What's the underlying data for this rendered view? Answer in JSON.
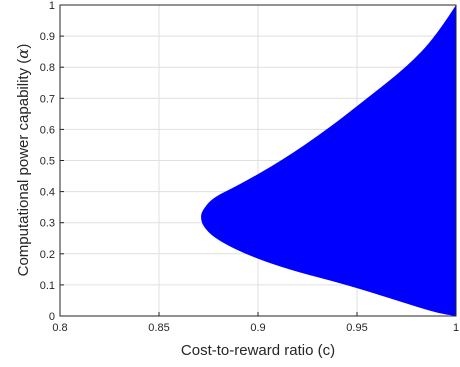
{
  "chart_data": {
    "type": "area",
    "title": "",
    "xlabel": "Cost-to-reward ratio (c)",
    "ylabel": "Computational power capability (",
    "ylabel_symbol": "α",
    "ylabel_close": ")",
    "xlim": [
      0.8,
      1.0
    ],
    "ylim": [
      0,
      1
    ],
    "xticks": [
      "0.8",
      "0.85",
      "0.9",
      "0.95",
      "1"
    ],
    "yticks": [
      "0",
      "0.1",
      "0.2",
      "0.3",
      "0.4",
      "0.5",
      "0.6",
      "0.7",
      "0.8",
      "0.9",
      "1"
    ],
    "grid": true,
    "fill_color": "#0000ff",
    "region_boundary": [
      {
        "x": 1.0,
        "y": 1.0
      },
      {
        "x": 0.99,
        "y": 0.9
      },
      {
        "x": 0.975,
        "y": 0.8
      },
      {
        "x": 0.955,
        "y": 0.7
      },
      {
        "x": 0.935,
        "y": 0.6
      },
      {
        "x": 0.912,
        "y": 0.5
      },
      {
        "x": 0.89,
        "y": 0.42
      },
      {
        "x": 0.877,
        "y": 0.38
      },
      {
        "x": 0.872,
        "y": 0.34
      },
      {
        "x": 0.871,
        "y": 0.32
      },
      {
        "x": 0.872,
        "y": 0.29
      },
      {
        "x": 0.878,
        "y": 0.25
      },
      {
        "x": 0.893,
        "y": 0.2
      },
      {
        "x": 0.915,
        "y": 0.15
      },
      {
        "x": 0.945,
        "y": 0.1
      },
      {
        "x": 0.97,
        "y": 0.05
      },
      {
        "x": 0.99,
        "y": 0.01
      },
      {
        "x": 1.0,
        "y": 0.0
      }
    ]
  }
}
